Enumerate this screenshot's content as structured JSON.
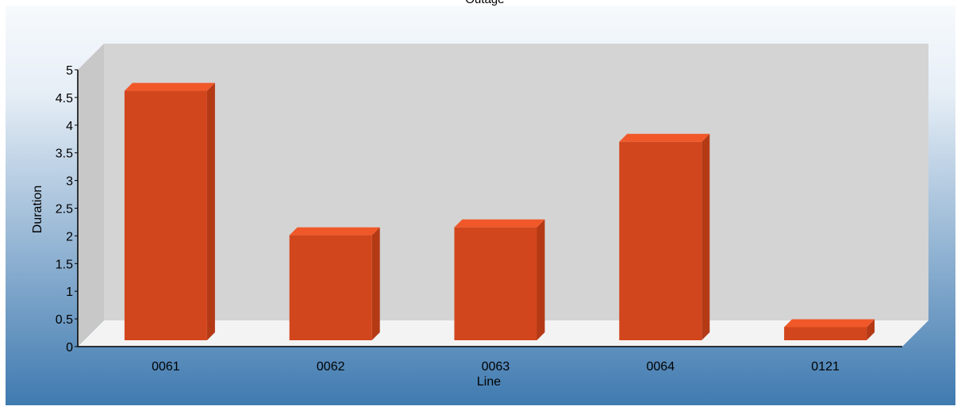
{
  "chart_data": {
    "type": "bar",
    "title": "Outage",
    "xlabel": "Line",
    "ylabel": "Duration",
    "categories": [
      "0061",
      "0062",
      "0063",
      "0064",
      "0121"
    ],
    "values": [
      4.75,
      2.0,
      2.15,
      3.78,
      0.25
    ],
    "ylim": [
      0,
      5
    ],
    "yticks": [
      "0",
      "0.5",
      "1",
      "1.5",
      "2",
      "2.5",
      "3",
      "3.5",
      "4",
      "4.5",
      "5"
    ],
    "grid": false,
    "legend": "none",
    "colors": {
      "bar_front": "#d2461d",
      "bar_top": "#f0582a",
      "bar_side": "#b43a15",
      "wall_back": "#d4d4d4",
      "wall_left": "#c8c8c8",
      "floor": "#f3f3f3",
      "bg_top": "#f7fafd",
      "bg_bottom": "#3f7ab0"
    }
  }
}
